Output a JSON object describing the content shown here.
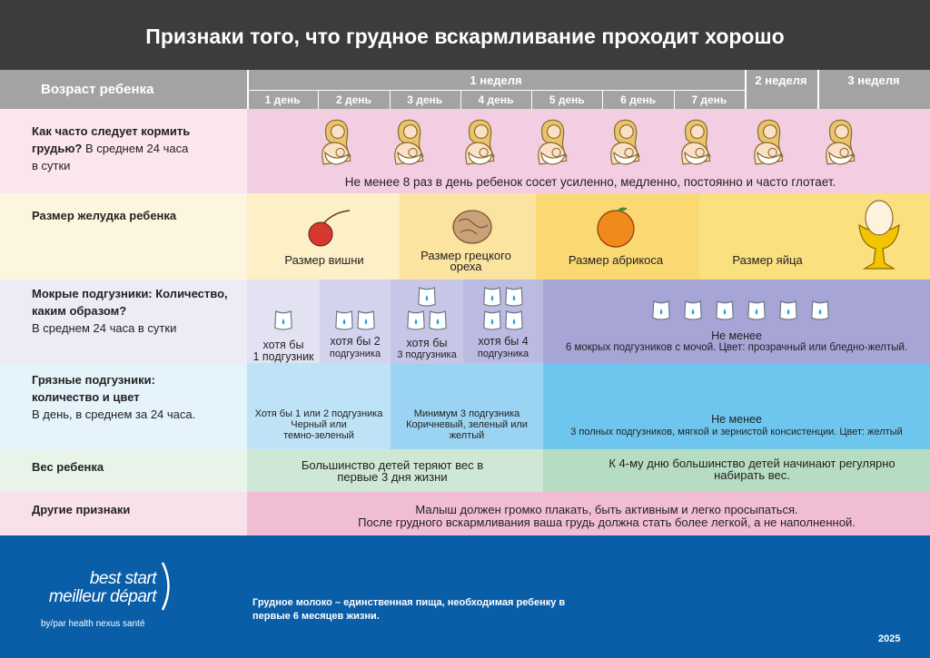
{
  "title": "Признаки того, что грудное вскармливание проходит хорошо",
  "header": {
    "age_label": "Возраст ребенка",
    "week1": "1 неделя",
    "days": [
      "1 день",
      "2 день",
      "3 день",
      "4 день",
      "5 день",
      "6 день",
      "7 день"
    ],
    "week2": "2 неделя",
    "week3": "3 неделя"
  },
  "rows": [
    {
      "label": "Как часто следует кормить грудью?",
      "note": "В среднем 24 часа в сутки",
      "text": "Не менее 8 раз в день ребенок сосет усиленно, медленно, постоянно и часто глотает."
    },
    {
      "label": "Размер желудка ребенка",
      "cells": [
        "Размер вишни",
        "Размер грецкого ореха",
        "Размер абрикоса",
        "Размер яйца"
      ]
    },
    {
      "label": "Мокрые подгузники: Количество, каким образом?",
      "note": "В среднем 24 часа в сутки",
      "cells": [
        [
          "хотя бы",
          "1 подгузник"
        ],
        [
          "хотя бы 2",
          "подгузника"
        ],
        [
          "хотя бы",
          "3 подгузника"
        ],
        [
          "хотя бы 4",
          "подгузника"
        ],
        [
          "Не менее",
          "6 мокрых подгузников с мочой. Цвет: прозрачный или бледно-желтый."
        ]
      ]
    },
    {
      "label": "Грязные подгузники: количество и цвет",
      "note": "В день, в среднем за 24 часа.",
      "cells": [
        [
          "Хотя бы 1 или 2 подгузника",
          "Черный или",
          "темно-зеленый"
        ],
        [
          "Минимум 3 подгузника",
          "Коричневый, зеленый или",
          "желтый"
        ],
        [
          "Не менее",
          "3 полных подгузников, мягкой и зернистой консистенции. Цвет: желтый"
        ]
      ]
    },
    {
      "label": "Вес ребенка",
      "cells": [
        [
          "Большинство детей теряют вес в",
          "первые 3 дня жизни"
        ],
        [
          "К 4-му дню большинство детей начинают регулярно",
          "набирать вес."
        ]
      ]
    },
    {
      "label": "Другие признаки",
      "lines": [
        "Малыш должен громко плакать, быть активным и легко просыпаться.",
        "После грудного вскармливания ваша грудь должна стать более легкой, а не наполненной."
      ]
    }
  ],
  "footer": {
    "logo_en": "best start",
    "logo_fr": "meilleur départ",
    "byline": "by/par health nexus santé",
    "tagline": [
      "Грудное молоко – единственная пища, необходимая ребенку в",
      "первые 6 месяцев жизни."
    ],
    "year": "2025"
  }
}
